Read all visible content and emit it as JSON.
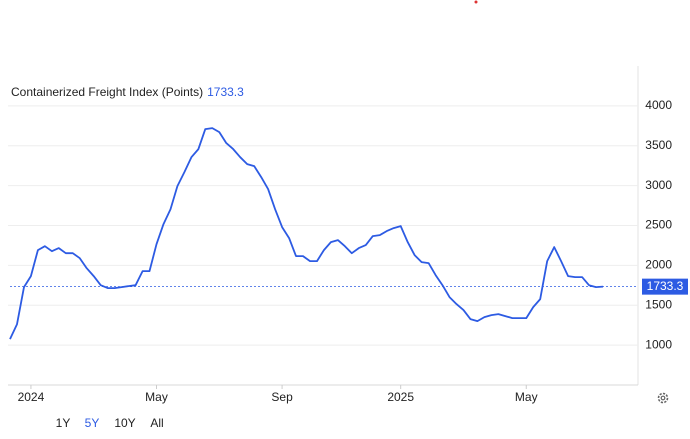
{
  "chart_data": {
    "type": "line",
    "title": "Containerized Freight Index (Points)",
    "color": "#2d5be3",
    "values": [
      1075,
      1263,
      1727,
      1865,
      2191,
      2240,
      2178,
      2216,
      2153,
      2153,
      2090,
      1965,
      1865,
      1752,
      1715,
      1715,
      1727,
      1740,
      1752,
      1928,
      1928,
      2266,
      2517,
      2705,
      2994,
      3169,
      3357,
      3458,
      3709,
      3721,
      3671,
      3533,
      3458,
      3357,
      3270,
      3245,
      3107,
      2956,
      2705,
      2480,
      2342,
      2116,
      2116,
      2053,
      2053,
      2191,
      2292,
      2317,
      2240,
      2153,
      2216,
      2254,
      2367,
      2379,
      2430,
      2467,
      2492,
      2292,
      2129,
      2041,
      2028,
      1878,
      1752,
      1602,
      1514,
      1439,
      1326,
      1301,
      1351,
      1376,
      1389,
      1364,
      1339,
      1339,
      1339,
      1477,
      1577,
      2053,
      2229,
      2053,
      1865,
      1853,
      1853,
      1752,
      1727,
      1733.3
    ],
    "xlim": [
      0,
      85
    ],
    "xticks": [
      {
        "value": 3,
        "label": "2024"
      },
      {
        "value": 21,
        "label": "May"
      },
      {
        "value": 39,
        "label": "Sep"
      },
      {
        "value": 56,
        "label": "2025"
      },
      {
        "value": 74,
        "label": "May"
      }
    ],
    "ylim": [
      500,
      4500
    ],
    "yticks": [
      1000,
      1500,
      2000,
      2500,
      3000,
      3500,
      4000
    ],
    "grid": true,
    "range_buttons": [
      "1Y",
      "5Y",
      "10Y",
      "All"
    ],
    "selected_range": "5Y"
  }
}
